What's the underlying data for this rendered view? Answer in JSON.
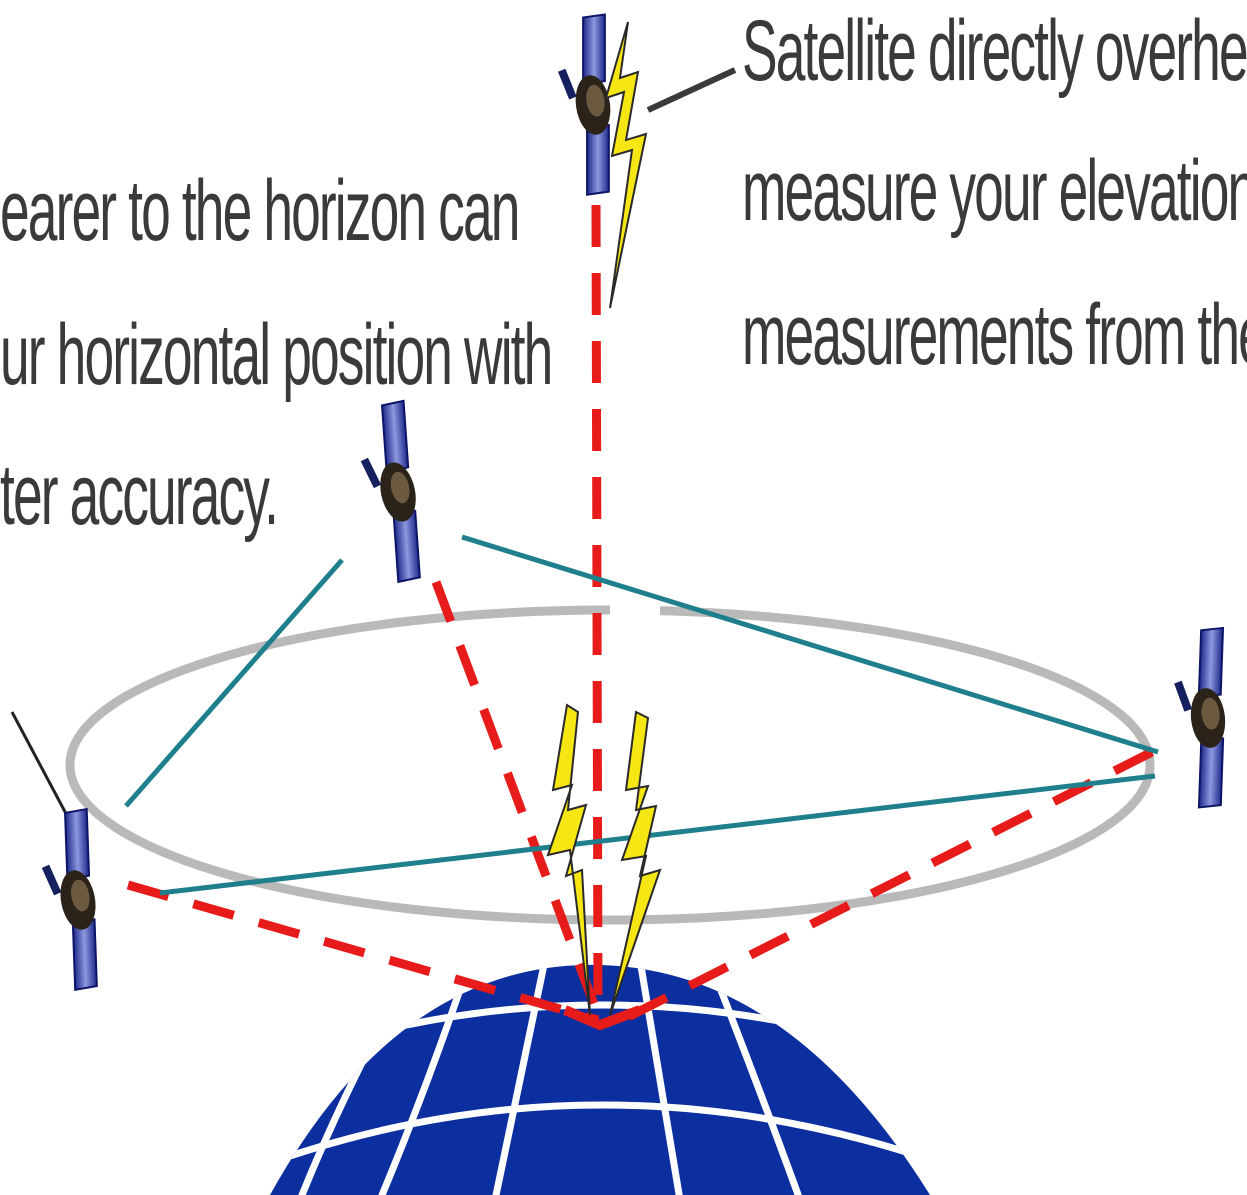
{
  "captions": {
    "right": [
      "Satellite directly overhead",
      "measure your elevation, b",
      "measurements from the o"
    ],
    "left": [
      "earer to the horizon can",
      "ur  horizontal position with",
      "ter accuracy."
    ]
  },
  "colors": {
    "globe": "#0b2f9e",
    "grid": "#ffffff",
    "orbit_ring": "#b9b9b9",
    "measurement_dashed": "#e81b1b",
    "connection_line": "#1f7f8c",
    "signal_bolt": "#f5e614",
    "text": "#3a3a3a"
  },
  "icons": [
    "satellite-icon",
    "lightning-bolt-icon",
    "globe-icon"
  ]
}
